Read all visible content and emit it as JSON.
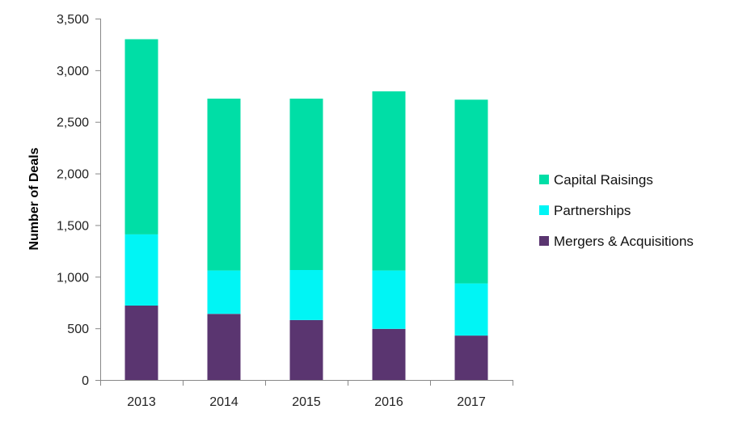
{
  "chart_data": {
    "type": "bar",
    "stacked": true,
    "title": "",
    "xlabel": "",
    "ylabel": "Number of Deals",
    "ylim": [
      0,
      3500
    ],
    "yticks": [
      0,
      500,
      1000,
      1500,
      2000,
      2500,
      3000,
      3500
    ],
    "ytick_labels": [
      "0",
      "500",
      "1,000",
      "1,500",
      "2,000",
      "2,500",
      "3,000",
      "3,500"
    ],
    "grid": false,
    "legend_position": "right",
    "categories": [
      "2013",
      "2014",
      "2015",
      "2016",
      "2017"
    ],
    "series": [
      {
        "name": "Mergers & Acquisitions",
        "color": "#5a3570",
        "values": [
          720,
          640,
          580,
          495,
          430
        ]
      },
      {
        "name": "Partnerships",
        "color": "#00f5f5",
        "values": [
          690,
          420,
          485,
          565,
          505
        ]
      },
      {
        "name": "Capital Raisings",
        "color": "#00dea6",
        "values": [
          1890,
          1665,
          1660,
          1735,
          1780
        ]
      }
    ],
    "legend_order": [
      "Capital Raisings",
      "Partnerships",
      "Mergers & Acquisitions"
    ]
  }
}
